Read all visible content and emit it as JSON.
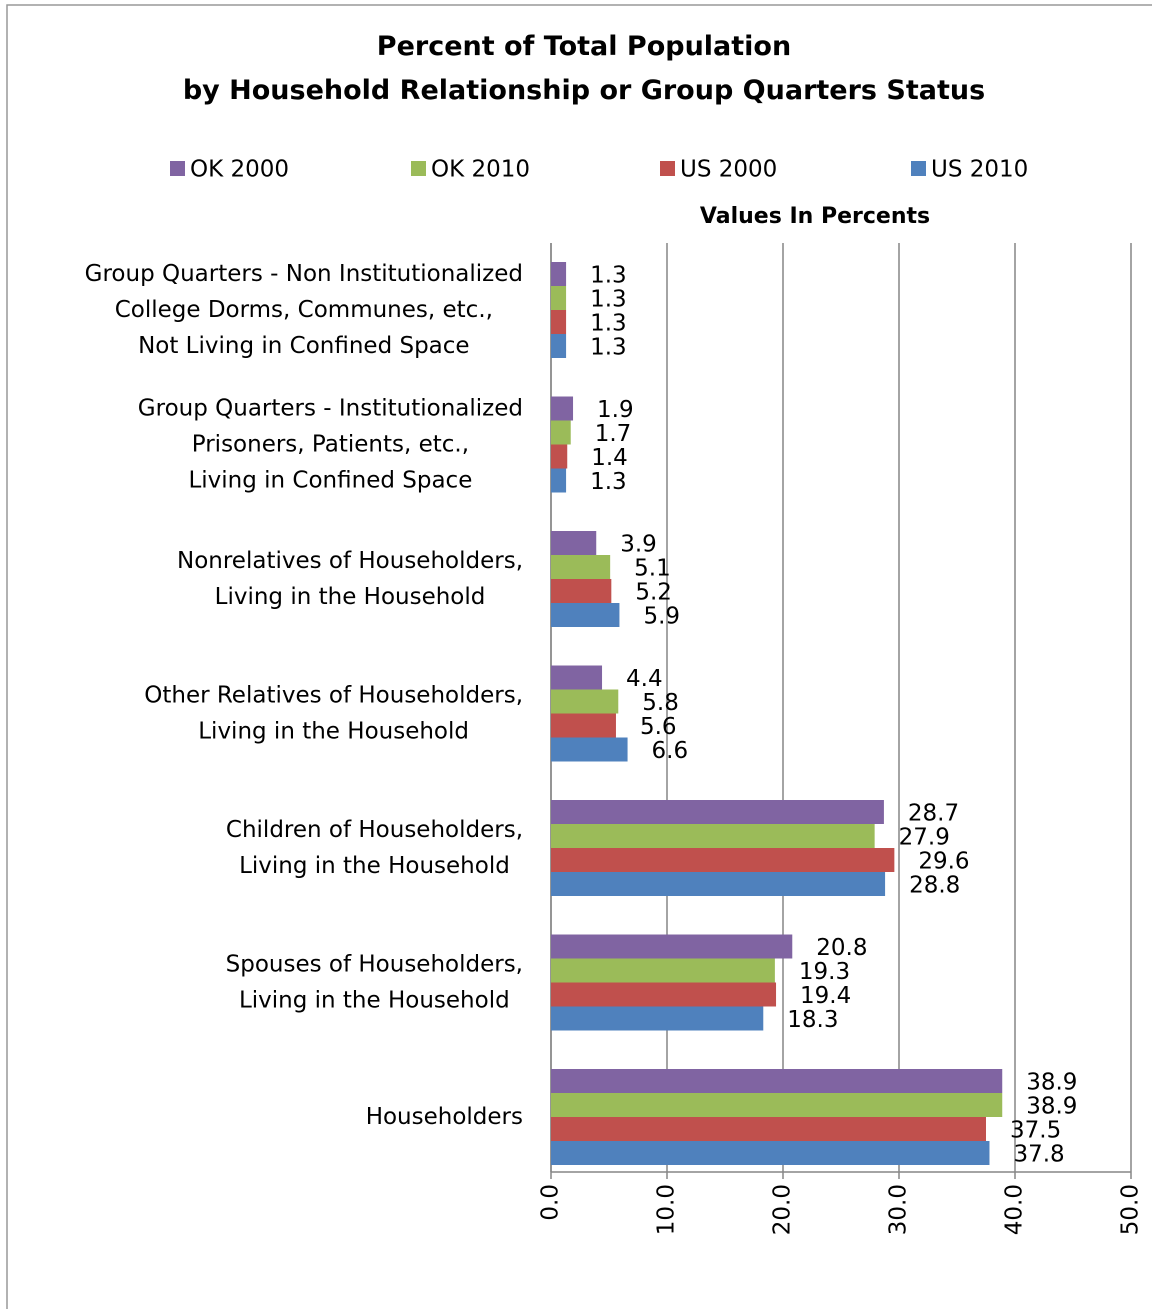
{
  "chart_data": {
    "type": "barh",
    "title": "Percent of Total Population\nby Household Relationship or Group Quarters Status",
    "x_label": "Values In Percents",
    "categories": [
      "Group Quarters - Non Institutionalized\nCollege Dorms, Communes, etc.,\nNot Living in Confined Space",
      "Group Quarters - Institutionalized\nPrisoners, Patients, etc.,\nLiving in Confined Space",
      "Nonrelatives of Householders,\nLiving in the Household",
      "Other Relatives of Householders,\nLiving in the Household",
      "Children of Householders,\nLiving in the Household",
      "Spouses of Householders,\nLiving in the Household",
      "Householders"
    ],
    "series": [
      {
        "name": "OK 2000",
        "color": "#8064a2",
        "values": [
          1.3,
          1.9,
          3.9,
          4.4,
          28.7,
          20.8,
          38.9
        ]
      },
      {
        "name": "OK 2010",
        "color": "#9bbb59",
        "values": [
          1.3,
          1.7,
          5.1,
          5.8,
          27.9,
          19.3,
          38.9
        ]
      },
      {
        "name": "US 2000",
        "color": "#c0504d",
        "values": [
          1.3,
          1.4,
          5.2,
          5.6,
          29.6,
          19.4,
          37.5
        ]
      },
      {
        "name": "US 2010",
        "color": "#4f81bd",
        "values": [
          1.3,
          1.3,
          5.9,
          6.6,
          28.8,
          18.3,
          37.8
        ]
      }
    ],
    "xlim": [
      0,
      50
    ],
    "xticks": [
      {
        "value": 0,
        "label": "0.0"
      },
      {
        "value": 10,
        "label": "10.0"
      },
      {
        "value": 20,
        "label": "20.0"
      },
      {
        "value": 30,
        "label": "30.0"
      },
      {
        "value": 40,
        "label": "40.0"
      },
      {
        "value": 50,
        "label": "50.0"
      }
    ],
    "grid": true,
    "legend": "top"
  }
}
